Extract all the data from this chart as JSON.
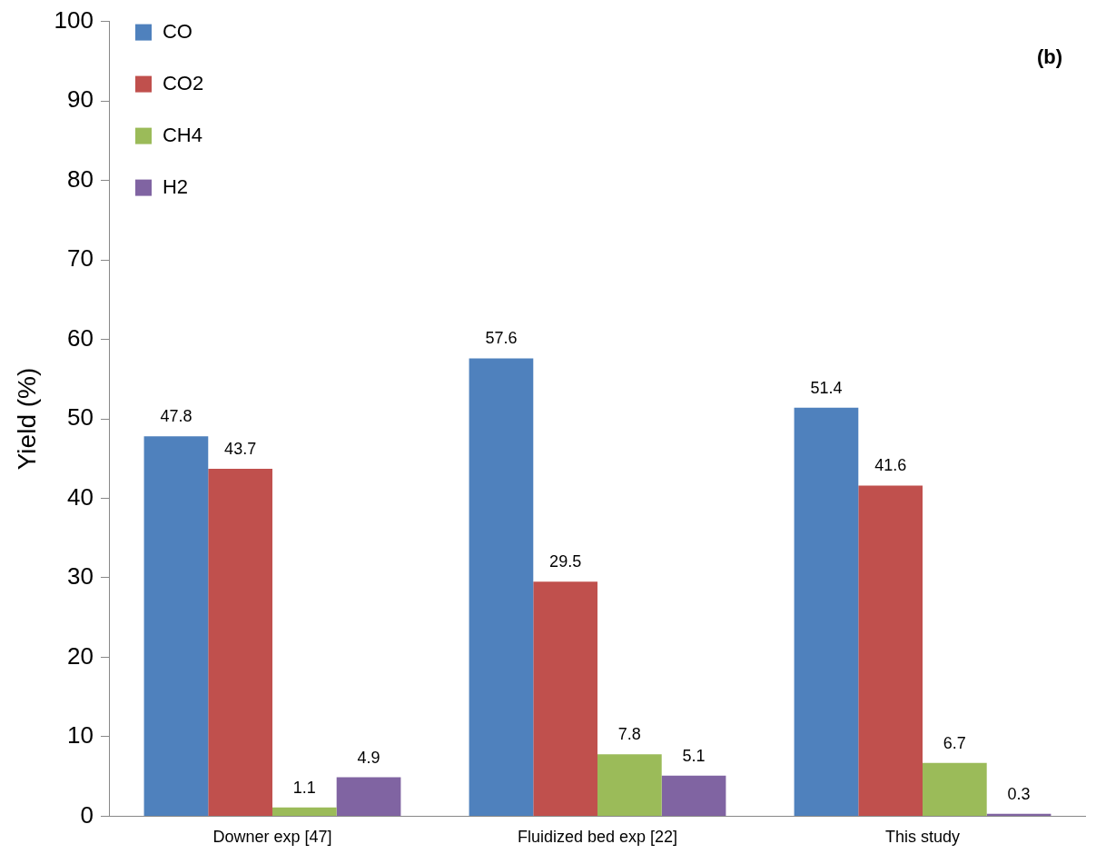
{
  "chart_data": {
    "type": "bar",
    "ylabel": "Yield (%)",
    "categories": [
      "Downer exp [47]",
      "Fluidized bed exp [22]",
      "This study"
    ],
    "series": [
      {
        "name": "CO",
        "color": "#4f81bd",
        "values": [
          47.8,
          57.6,
          51.4
        ]
      },
      {
        "name": "CO2",
        "color": "#c0504d",
        "values": [
          43.7,
          29.5,
          41.6
        ]
      },
      {
        "name": "CH4",
        "color": "#9bbb59",
        "values": [
          1.1,
          7.8,
          6.7
        ]
      },
      {
        "name": "H2",
        "color": "#8064a2",
        "values": [
          4.9,
          5.1,
          0.3
        ]
      }
    ],
    "ylim": [
      0,
      100
    ],
    "yticks": [
      0,
      10,
      20,
      30,
      40,
      50,
      60,
      70,
      80,
      90,
      100
    ],
    "grid": false,
    "legend": "top left",
    "data_labels": true,
    "annotations": [
      "(b)"
    ]
  }
}
